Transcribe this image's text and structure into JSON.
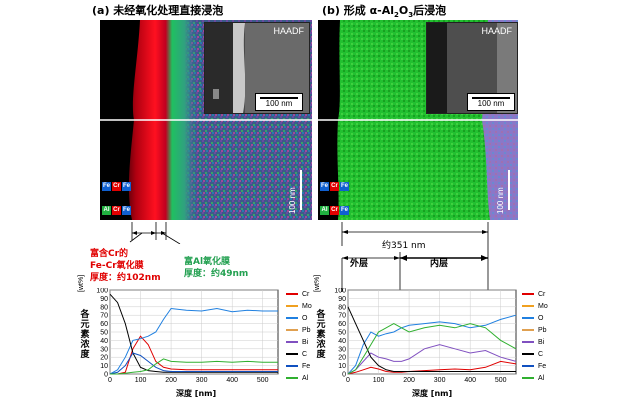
{
  "panel_a": {
    "title": "(a) 未经氧化处理直接浸泡",
    "haadf": "HAADF",
    "scale_inset": "100 nm",
    "scale_map": "100 nm",
    "elements": [
      "Fe",
      "Cr",
      "Al"
    ],
    "badge_colors": {
      "Fe": "#1060d0",
      "Cr": "#e00000",
      "Al": "#20b040"
    },
    "annotation_cr_title": "富含Cr的",
    "annotation_cr_film": "Fe-Cr氧化膜",
    "annotation_cr_thickness": "厚度：约102nm",
    "annotation_al_film": "富Al氧化膜",
    "annotation_al_thickness": "厚度：约49nm",
    "ylabel": "各元素浓度",
    "yunit": "[wt%]",
    "xlabel": "深度 [nm]",
    "yticks": [
      "0",
      "10",
      "20",
      "30",
      "40",
      "50",
      "60",
      "70",
      "80",
      "90",
      "100"
    ],
    "xticks": [
      "0",
      "100",
      "200",
      "300",
      "400",
      "500"
    ]
  },
  "panel_b": {
    "title": "(b) 形成 α-Al",
    "title_sub1": "2",
    "title_mid": "O",
    "title_sub2": "3",
    "title_end": "后浸泡",
    "haadf": "HAADF",
    "scale_inset": "100 nm",
    "scale_map": "100 nm",
    "elements": [
      "Fe",
      "Cr",
      "Al"
    ],
    "dim_total": "约351 nm",
    "outer_layer": "外层",
    "inner_layer": "内层",
    "ylabel": "各元素浓度",
    "yunit": "[wt%]",
    "xlabel": "深度 [nm]",
    "yticks": [
      "0",
      "10",
      "20",
      "30",
      "40",
      "50",
      "60",
      "70",
      "80",
      "90",
      "100"
    ],
    "xticks": [
      "0",
      "100",
      "200",
      "300",
      "400",
      "500"
    ]
  },
  "legend": [
    {
      "name": "Cr",
      "color": "#e00000"
    },
    {
      "name": "Mo",
      "color": "#f0a020"
    },
    {
      "name": "O",
      "color": "#2080e0"
    },
    {
      "name": "Pb",
      "color": "#e0a050"
    },
    {
      "name": "Bi",
      "color": "#8050c0"
    },
    {
      "name": "C",
      "color": "#000000"
    },
    {
      "name": "Fe",
      "color": "#1050c0"
    },
    {
      "name": "Al",
      "color": "#30b030"
    }
  ],
  "chart_data": [
    {
      "type": "line",
      "xlabel": "深度 [nm]",
      "ylabel": "各元素浓度 [wt%]",
      "xlim": [
        0,
        550
      ],
      "ylim": [
        0,
        100
      ],
      "grid": true,
      "legend_position": "right",
      "series": [
        {
          "name": "Cr",
          "x": [
            0,
            25,
            50,
            75,
            100,
            125,
            150,
            175,
            200,
            250,
            300,
            350,
            400,
            450,
            500,
            550
          ],
          "values": [
            0,
            0,
            2,
            30,
            45,
            35,
            15,
            8,
            6,
            5,
            5,
            5,
            5,
            5,
            5,
            5
          ]
        },
        {
          "name": "O",
          "x": [
            0,
            25,
            50,
            75,
            100,
            125,
            150,
            175,
            200,
            250,
            300,
            350,
            400,
            450,
            500,
            550
          ],
          "values": [
            0,
            5,
            20,
            40,
            42,
            45,
            50,
            65,
            78,
            76,
            75,
            78,
            74,
            76,
            75,
            75
          ]
        },
        {
          "name": "C",
          "x": [
            0,
            25,
            50,
            75,
            100,
            125,
            150,
            175,
            200,
            250,
            300,
            350,
            400,
            450,
            500,
            550
          ],
          "values": [
            95,
            85,
            60,
            25,
            8,
            4,
            3,
            2,
            2,
            2,
            2,
            2,
            2,
            2,
            2,
            2
          ]
        },
        {
          "name": "Fe",
          "x": [
            0,
            25,
            50,
            75,
            100,
            125,
            150,
            175,
            200,
            250,
            300,
            350,
            400,
            450,
            500,
            550
          ],
          "values": [
            0,
            2,
            10,
            25,
            22,
            15,
            8,
            4,
            3,
            3,
            3,
            3,
            3,
            3,
            3,
            3
          ]
        },
        {
          "name": "Al",
          "x": [
            0,
            25,
            50,
            75,
            100,
            125,
            150,
            175,
            200,
            250,
            300,
            350,
            400,
            450,
            500,
            550
          ],
          "values": [
            0,
            0,
            1,
            2,
            3,
            5,
            12,
            18,
            15,
            14,
            14,
            15,
            14,
            15,
            14,
            14
          ]
        }
      ]
    },
    {
      "type": "line",
      "xlabel": "深度 [nm]",
      "ylabel": "各元素浓度 [wt%]",
      "xlim": [
        0,
        550
      ],
      "ylim": [
        0,
        100
      ],
      "grid": true,
      "legend_position": "right",
      "series": [
        {
          "name": "Cr",
          "x": [
            0,
            25,
            50,
            75,
            100,
            125,
            150,
            175,
            200,
            250,
            300,
            350,
            400,
            450,
            500,
            550
          ],
          "values": [
            0,
            2,
            5,
            8,
            6,
            3,
            2,
            2,
            3,
            4,
            5,
            6,
            5,
            8,
            15,
            12
          ]
        },
        {
          "name": "O",
          "x": [
            0,
            25,
            50,
            75,
            100,
            125,
            150,
            175,
            200,
            250,
            300,
            350,
            400,
            450,
            500,
            550
          ],
          "values": [
            0,
            10,
            35,
            50,
            45,
            48,
            50,
            55,
            58,
            60,
            62,
            60,
            55,
            58,
            65,
            70
          ]
        },
        {
          "name": "Bi",
          "x": [
            0,
            25,
            50,
            75,
            100,
            125,
            150,
            175,
            200,
            250,
            300,
            350,
            400,
            450,
            500,
            550
          ],
          "values": [
            0,
            5,
            15,
            25,
            20,
            18,
            15,
            15,
            18,
            30,
            35,
            30,
            25,
            28,
            20,
            15
          ]
        },
        {
          "name": "C",
          "x": [
            0,
            25,
            50,
            75,
            100,
            125,
            150,
            175,
            200,
            250,
            300,
            350,
            400,
            450,
            500,
            550
          ],
          "values": [
            80,
            60,
            40,
            20,
            10,
            5,
            3,
            3,
            3,
            3,
            3,
            3,
            3,
            3,
            3,
            3
          ]
        },
        {
          "name": "Al",
          "x": [
            0,
            25,
            50,
            75,
            100,
            125,
            150,
            175,
            200,
            250,
            300,
            350,
            400,
            450,
            500,
            550
          ],
          "values": [
            0,
            5,
            20,
            35,
            50,
            55,
            60,
            55,
            50,
            55,
            58,
            55,
            60,
            55,
            40,
            30
          ]
        }
      ]
    }
  ]
}
